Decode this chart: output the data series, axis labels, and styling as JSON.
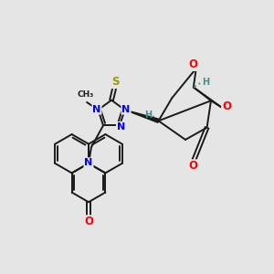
{
  "background_color": "#e5e5e5",
  "bond_color": "#1a1a1a",
  "N_color": "#0000ff",
  "O_color": "#ff0000",
  "S_color": "#999900",
  "H_color": "#4a8a8a",
  "figsize": [
    3.0,
    3.0
  ],
  "dpi": 100,
  "xlim": [
    0,
    10
  ],
  "ylim": [
    0,
    10
  ]
}
